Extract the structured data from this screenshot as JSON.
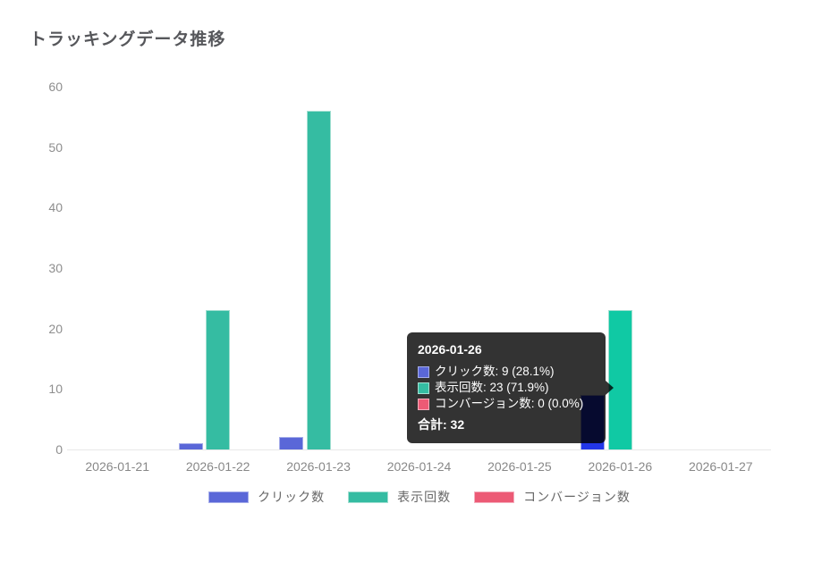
{
  "title": "トラッキングデータ推移",
  "chart_data": {
    "type": "bar",
    "title": "トラッキングデータ推移",
    "categories": [
      "2026-01-21",
      "2026-01-22",
      "2026-01-23",
      "2026-01-24",
      "2026-01-25",
      "2026-01-26",
      "2026-01-27"
    ],
    "series": [
      {
        "name": "クリック数",
        "color": "#5A67D8",
        "border_color": "#a4ace9",
        "hover_color": "#2236E8",
        "values": [
          0,
          1,
          2,
          0,
          0,
          9,
          0
        ]
      },
      {
        "name": "表示回数",
        "color": "#35BCA2",
        "border_color": "#a2dfd1",
        "hover_color": "#10C9A4",
        "values": [
          0,
          23,
          56,
          0,
          0,
          23,
          0
        ]
      },
      {
        "name": "コンバージョン数",
        "color": "#EC5A75",
        "border_color": "#f4aebd",
        "hover_color": "#EC5A75",
        "values": [
          0,
          0,
          0,
          0,
          0,
          0,
          0
        ]
      }
    ],
    "xlabel": "",
    "ylabel": "",
    "ylim": [
      0,
      60
    ],
    "yticks": [
      0,
      10,
      20,
      30,
      40,
      50,
      60
    ],
    "grid": false,
    "legend_position": "bottom",
    "highlighted_category": "2026-01-26"
  },
  "tooltip": {
    "title": "2026-01-26",
    "rows": [
      {
        "text": "クリック数: 9 (28.1%)",
        "color": "#5A67D8",
        "border_color": "#a4ace9"
      },
      {
        "text": "表示回数: 23 (71.9%)",
        "color": "#35BCA2",
        "border_color": "#a2dfd1"
      },
      {
        "text": "コンバージョン数: 0 (0.0%)",
        "color": "#EC5A75",
        "border_color": "#f4aebd"
      }
    ],
    "footer": "合計: 32"
  },
  "colors": {
    "title_text": "#56575b",
    "axis_text": "#8e8e8e",
    "legend_text": "#666666",
    "baseline": "#e8e8e8",
    "tooltip_background": "rgba(0,0,0,0.8)"
  }
}
